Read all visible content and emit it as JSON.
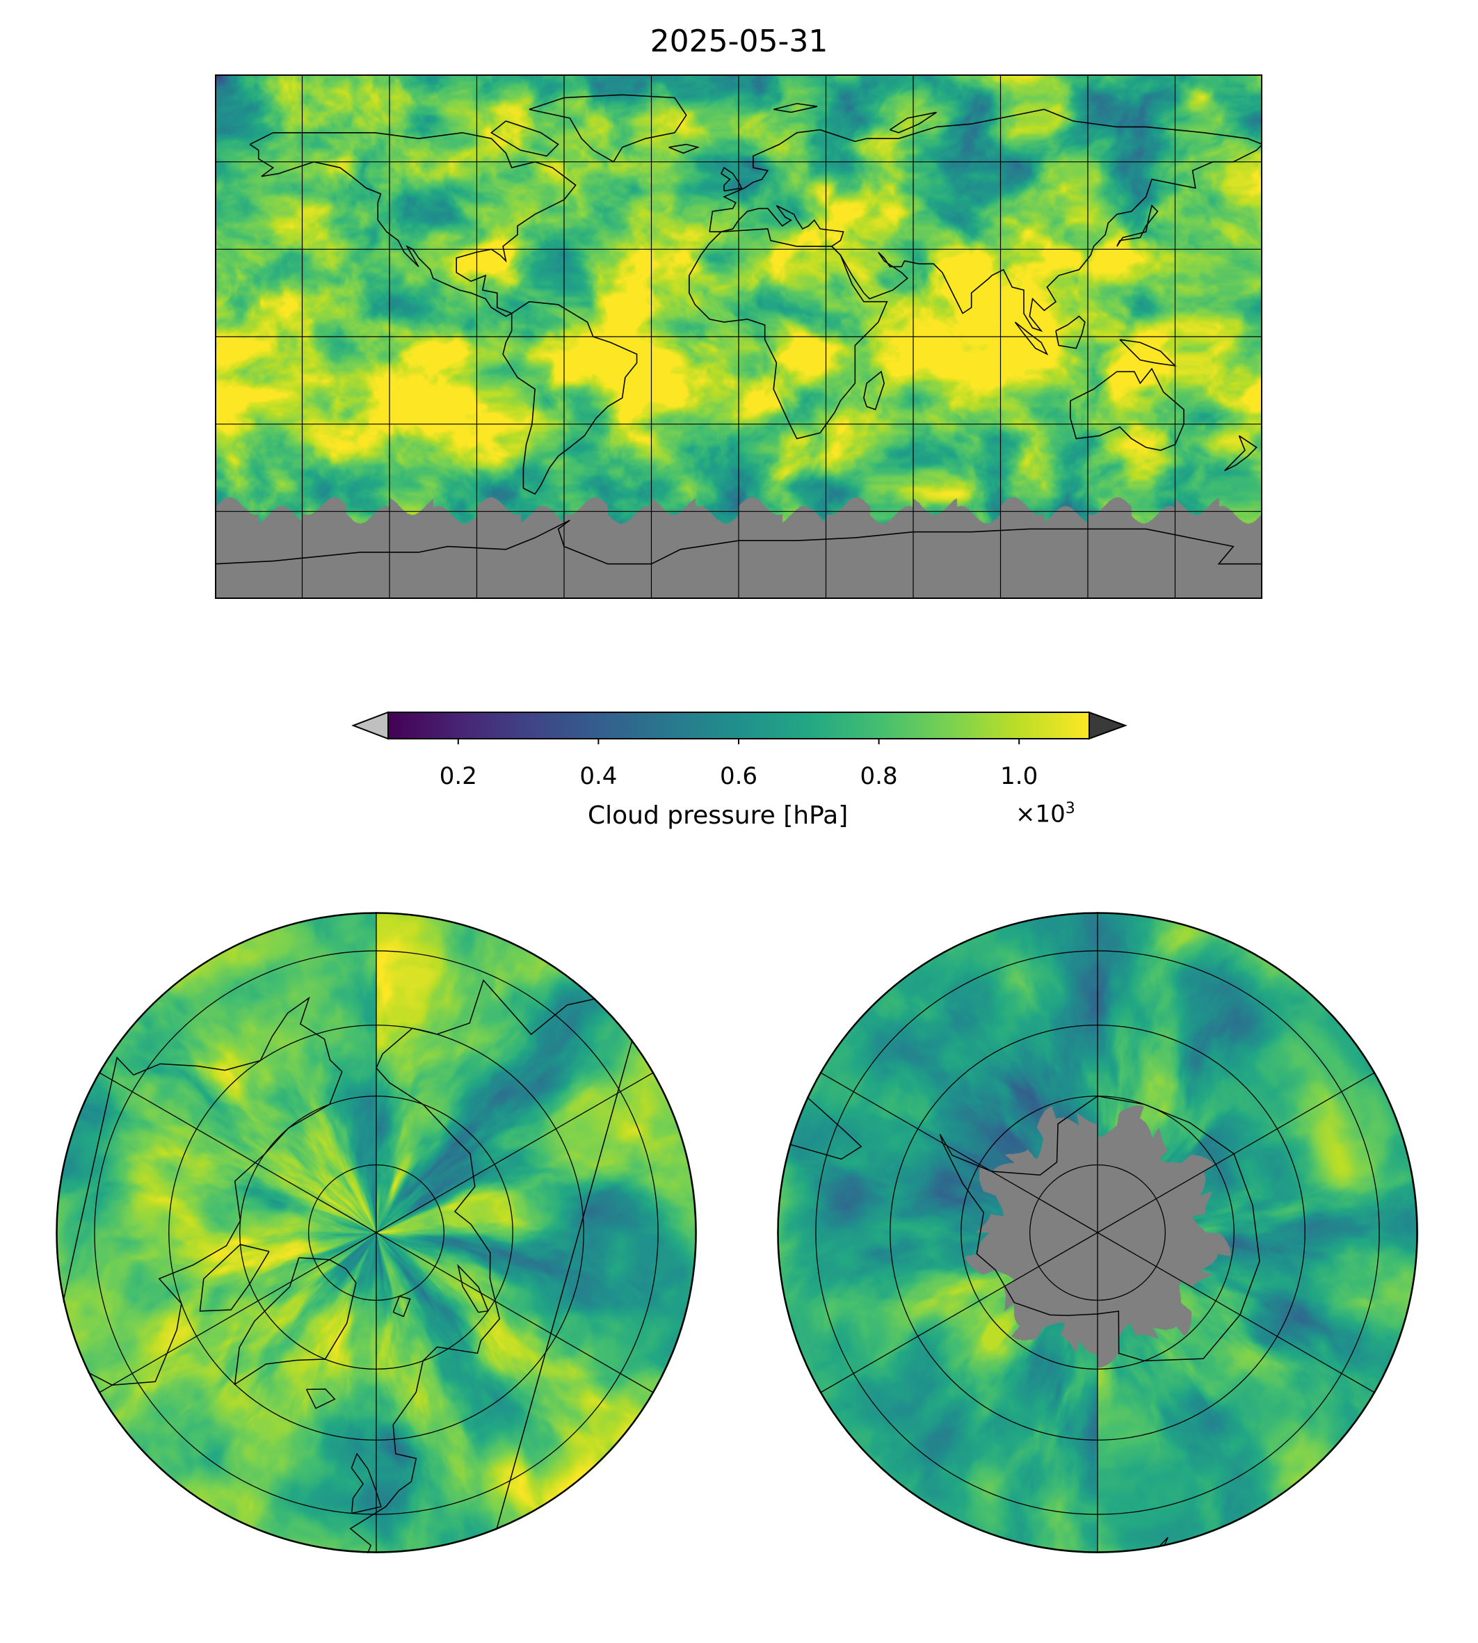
{
  "title": "2025-05-31",
  "colorbar": {
    "label": "Cloud pressure [hPa]",
    "ticks": [
      "0.2",
      "0.4",
      "0.6",
      "0.8",
      "1.0"
    ],
    "tick_values": [
      0.2,
      0.4,
      0.6,
      0.8,
      1.0
    ],
    "range": [
      0.1,
      1.1
    ],
    "multiplier_base": "×10",
    "multiplier_exp": "3",
    "colormap": "viridis",
    "under_color": "#c0c0c0",
    "over_color": "#3a3a3a",
    "extend": "both"
  },
  "maps": {
    "global": {
      "projection": "PlateCarree",
      "lon_range": [
        -180,
        180
      ],
      "lat_range": [
        -90,
        90
      ],
      "gridlines_lon_step": 30,
      "gridlines_lat_step": 30,
      "missing_color": "#808080"
    },
    "north_polar": {
      "projection": "NorthPolarStereo",
      "gridlines_lat": [
        80,
        70,
        60,
        50
      ],
      "gridlines_lon_step": 60,
      "missing_color": "#808080"
    },
    "south_polar": {
      "projection": "SouthPolarStereo",
      "gridlines_lat": [
        -80,
        -70,
        -60,
        -50
      ],
      "gridlines_lon_step": 60,
      "missing_color": "#808080"
    }
  }
}
